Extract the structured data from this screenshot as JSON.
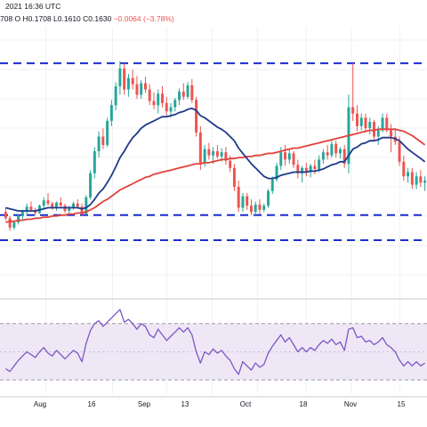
{
  "header": {
    "line1": "2021 16:36 UTC",
    "ohlc_prefix": "708  O",
    "h_label": "H",
    "high": "0.1708",
    "l_label": "L",
    "low": "0.1610",
    "c_label": "C",
    "close": "0.1630",
    "change": "−0.0064 (−3.78%)"
  },
  "colors": {
    "up": "#26a69a",
    "down": "#ef5350",
    "ema20": "#1e3a8a",
    "ema50": "#e0423a",
    "level_line": "#1a2fd1",
    "rsi": "#7e57c2",
    "rsi_band": "#ede7f6",
    "grid": "#eef0f3",
    "separator": "#c9cdd6"
  },
  "chart_data": [
    {
      "type": "candlestick",
      "x_ticks": [
        "Aug",
        "16",
        "Sep",
        "13",
        "Oct",
        "18",
        "Nov",
        "15"
      ],
      "horizontal_levels": [
        0.31,
        0.165,
        0.141
      ],
      "ylim": [
        0.09,
        0.345
      ],
      "grid": true,
      "series": [
        {
          "name": "price",
          "values_ohlc": "candles"
        },
        {
          "name": "",
          "role": "ema20"
        },
        {
          "name": "",
          "role": "ema50"
        }
      ],
      "candles": [
        [
          0.168,
          0.172,
          0.16,
          0.162
        ],
        [
          0.162,
          0.164,
          0.15,
          0.153
        ],
        [
          0.153,
          0.16,
          0.151,
          0.158
        ],
        [
          0.158,
          0.166,
          0.156,
          0.164
        ],
        [
          0.164,
          0.17,
          0.16,
          0.168
        ],
        [
          0.168,
          0.176,
          0.165,
          0.173
        ],
        [
          0.173,
          0.178,
          0.168,
          0.17
        ],
        [
          0.17,
          0.172,
          0.165,
          0.167
        ],
        [
          0.167,
          0.175,
          0.166,
          0.174
        ],
        [
          0.174,
          0.182,
          0.171,
          0.179
        ],
        [
          0.179,
          0.186,
          0.174,
          0.176
        ],
        [
          0.176,
          0.178,
          0.17,
          0.172
        ],
        [
          0.172,
          0.178,
          0.169,
          0.177
        ],
        [
          0.177,
          0.182,
          0.172,
          0.174
        ],
        [
          0.174,
          0.176,
          0.167,
          0.169
        ],
        [
          0.169,
          0.174,
          0.166,
          0.172
        ],
        [
          0.172,
          0.178,
          0.17,
          0.176
        ],
        [
          0.176,
          0.18,
          0.171,
          0.173
        ],
        [
          0.173,
          0.176,
          0.164,
          0.166
        ],
        [
          0.166,
          0.184,
          0.165,
          0.182
        ],
        [
          0.182,
          0.208,
          0.18,
          0.205
        ],
        [
          0.205,
          0.23,
          0.2,
          0.226
        ],
        [
          0.226,
          0.245,
          0.22,
          0.24
        ],
        [
          0.24,
          0.248,
          0.228,
          0.232
        ],
        [
          0.232,
          0.258,
          0.23,
          0.255
        ],
        [
          0.255,
          0.275,
          0.25,
          0.27
        ],
        [
          0.27,
          0.292,
          0.265,
          0.288
        ],
        [
          0.288,
          0.312,
          0.28,
          0.305
        ],
        [
          0.305,
          0.31,
          0.28,
          0.285
        ],
        [
          0.285,
          0.3,
          0.278,
          0.296
        ],
        [
          0.296,
          0.304,
          0.285,
          0.29
        ],
        [
          0.29,
          0.298,
          0.276,
          0.28
        ],
        [
          0.28,
          0.294,
          0.276,
          0.291
        ],
        [
          0.291,
          0.297,
          0.282,
          0.285
        ],
        [
          0.285,
          0.29,
          0.27,
          0.274
        ],
        [
          0.274,
          0.282,
          0.266,
          0.27
        ],
        [
          0.27,
          0.285,
          0.262,
          0.281
        ],
        [
          0.281,
          0.288,
          0.268,
          0.272
        ],
        [
          0.272,
          0.278,
          0.26,
          0.264
        ],
        [
          0.264,
          0.272,
          0.258,
          0.268
        ],
        [
          0.268,
          0.277,
          0.264,
          0.275
        ],
        [
          0.275,
          0.286,
          0.27,
          0.283
        ],
        [
          0.283,
          0.291,
          0.275,
          0.278
        ],
        [
          0.278,
          0.292,
          0.276,
          0.289
        ],
        [
          0.289,
          0.295,
          0.272,
          0.275
        ],
        [
          0.275,
          0.278,
          0.24,
          0.244
        ],
        [
          0.244,
          0.25,
          0.208,
          0.215
        ],
        [
          0.215,
          0.232,
          0.211,
          0.228
        ],
        [
          0.228,
          0.234,
          0.218,
          0.222
        ],
        [
          0.222,
          0.23,
          0.214,
          0.226
        ],
        [
          0.226,
          0.232,
          0.219,
          0.221
        ],
        [
          0.221,
          0.229,
          0.216,
          0.225
        ],
        [
          0.225,
          0.23,
          0.213,
          0.217
        ],
        [
          0.217,
          0.222,
          0.206,
          0.21
        ],
        [
          0.21,
          0.214,
          0.188,
          0.192
        ],
        [
          0.192,
          0.198,
          0.168,
          0.172
        ],
        [
          0.172,
          0.186,
          0.168,
          0.183
        ],
        [
          0.183,
          0.186,
          0.17,
          0.174
        ],
        [
          0.174,
          0.18,
          0.165,
          0.168
        ],
        [
          0.168,
          0.178,
          0.165,
          0.175
        ],
        [
          0.175,
          0.18,
          0.166,
          0.17
        ],
        [
          0.17,
          0.176,
          0.168,
          0.174
        ],
        [
          0.174,
          0.19,
          0.172,
          0.188
        ],
        [
          0.188,
          0.202,
          0.185,
          0.199
        ],
        [
          0.199,
          0.215,
          0.197,
          0.212
        ],
        [
          0.212,
          0.23,
          0.208,
          0.225
        ],
        [
          0.225,
          0.232,
          0.212,
          0.218
        ],
        [
          0.218,
          0.228,
          0.214,
          0.224
        ],
        [
          0.224,
          0.226,
          0.21,
          0.213
        ],
        [
          0.213,
          0.218,
          0.2,
          0.205
        ],
        [
          0.205,
          0.212,
          0.196,
          0.21
        ],
        [
          0.21,
          0.215,
          0.202,
          0.206
        ],
        [
          0.206,
          0.214,
          0.201,
          0.212
        ],
        [
          0.212,
          0.218,
          0.204,
          0.209
        ],
        [
          0.209,
          0.222,
          0.206,
          0.218
        ],
        [
          0.218,
          0.228,
          0.214,
          0.225
        ],
        [
          0.225,
          0.232,
          0.218,
          0.222
        ],
        [
          0.222,
          0.236,
          0.22,
          0.233
        ],
        [
          0.233,
          0.236,
          0.22,
          0.224
        ],
        [
          0.224,
          0.23,
          0.219,
          0.228
        ],
        [
          0.228,
          0.232,
          0.21,
          0.214
        ],
        [
          0.214,
          0.28,
          0.205,
          0.268
        ],
        [
          0.268,
          0.31,
          0.255,
          0.262
        ],
        [
          0.262,
          0.27,
          0.245,
          0.25
        ],
        [
          0.25,
          0.262,
          0.246,
          0.258
        ],
        [
          0.258,
          0.262,
          0.244,
          0.248
        ],
        [
          0.248,
          0.258,
          0.242,
          0.254
        ],
        [
          0.254,
          0.256,
          0.236,
          0.24
        ],
        [
          0.24,
          0.25,
          0.232,
          0.246
        ],
        [
          0.246,
          0.262,
          0.244,
          0.258
        ],
        [
          0.258,
          0.262,
          0.244,
          0.246
        ],
        [
          0.246,
          0.252,
          0.225,
          0.24
        ],
        [
          0.24,
          0.248,
          0.232,
          0.235
        ],
        [
          0.235,
          0.24,
          0.212,
          0.216
        ],
        [
          0.216,
          0.222,
          0.198,
          0.202
        ],
        [
          0.202,
          0.21,
          0.196,
          0.206
        ],
        [
          0.206,
          0.21,
          0.19,
          0.194
        ],
        [
          0.194,
          0.206,
          0.19,
          0.202
        ],
        [
          0.202,
          0.208,
          0.192,
          0.196
        ],
        [
          0.196,
          0.202,
          0.188,
          0.198
        ]
      ],
      "ema20": [
        0.172,
        0.171,
        0.17,
        0.169,
        0.169,
        0.169,
        0.169,
        0.169,
        0.17,
        0.171,
        0.172,
        0.172,
        0.172,
        0.172,
        0.172,
        0.172,
        0.172,
        0.172,
        0.171,
        0.172,
        0.175,
        0.18,
        0.186,
        0.19,
        0.196,
        0.203,
        0.211,
        0.22,
        0.226,
        0.233,
        0.239,
        0.243,
        0.248,
        0.251,
        0.253,
        0.255,
        0.257,
        0.259,
        0.259,
        0.26,
        0.261,
        0.263,
        0.264,
        0.266,
        0.267,
        0.265,
        0.26,
        0.258,
        0.255,
        0.252,
        0.249,
        0.247,
        0.244,
        0.24,
        0.236,
        0.229,
        0.224,
        0.219,
        0.214,
        0.21,
        0.206,
        0.202,
        0.2,
        0.2,
        0.201,
        0.203,
        0.204,
        0.205,
        0.206,
        0.206,
        0.206,
        0.206,
        0.207,
        0.207,
        0.208,
        0.209,
        0.211,
        0.213,
        0.214,
        0.216,
        0.216,
        0.222,
        0.228,
        0.23,
        0.233,
        0.234,
        0.236,
        0.236,
        0.237,
        0.239,
        0.239,
        0.239,
        0.238,
        0.236,
        0.232,
        0.228,
        0.225,
        0.222,
        0.219,
        0.216
      ],
      "ema50": [
        0.158,
        0.159,
        0.159,
        0.16,
        0.16,
        0.161,
        0.161,
        0.162,
        0.162,
        0.163,
        0.163,
        0.164,
        0.164,
        0.165,
        0.165,
        0.166,
        0.166,
        0.167,
        0.167,
        0.168,
        0.17,
        0.172,
        0.175,
        0.178,
        0.18,
        0.183,
        0.186,
        0.189,
        0.191,
        0.193,
        0.195,
        0.197,
        0.199,
        0.201,
        0.202,
        0.204,
        0.205,
        0.206,
        0.207,
        0.208,
        0.209,
        0.21,
        0.211,
        0.212,
        0.213,
        0.214,
        0.214,
        0.215,
        0.215,
        0.216,
        0.217,
        0.218,
        0.218,
        0.219,
        0.219,
        0.22,
        0.22,
        0.221,
        0.221,
        0.222,
        0.222,
        0.223,
        0.224,
        0.224,
        0.225,
        0.226,
        0.227,
        0.228,
        0.229,
        0.229,
        0.23,
        0.231,
        0.232,
        0.233,
        0.234,
        0.235,
        0.236,
        0.237,
        0.238,
        0.239,
        0.24,
        0.241,
        0.242,
        0.243,
        0.244,
        0.245,
        0.246,
        0.246,
        0.247,
        0.247,
        0.247,
        0.247,
        0.247,
        0.246,
        0.245,
        0.243,
        0.241,
        0.238,
        0.235,
        0.232
      ]
    },
    {
      "type": "line",
      "ylim": [
        20,
        85
      ],
      "band": [
        30,
        70
      ],
      "grid": true,
      "series": [
        {
          "name": "",
          "role": "rsi"
        }
      ],
      "values": [
        38,
        36,
        40,
        44,
        47,
        50,
        48,
        46,
        50,
        53,
        49,
        47,
        51,
        48,
        45,
        48,
        51,
        49,
        43,
        56,
        65,
        70,
        72,
        68,
        71,
        74,
        77,
        80,
        71,
        73,
        70,
        66,
        70,
        68,
        62,
        60,
        66,
        62,
        58,
        61,
        64,
        67,
        64,
        67,
        62,
        50,
        42,
        50,
        48,
        52,
        49,
        51,
        47,
        44,
        38,
        34,
        43,
        40,
        37,
        42,
        39,
        41,
        49,
        54,
        58,
        62,
        57,
        60,
        55,
        50,
        53,
        50,
        53,
        51,
        55,
        58,
        56,
        59,
        55,
        57,
        51,
        66,
        67,
        60,
        61,
        57,
        58,
        55,
        57,
        60,
        55,
        53,
        50,
        44,
        40,
        43,
        40,
        43,
        40,
        42
      ]
    }
  ]
}
